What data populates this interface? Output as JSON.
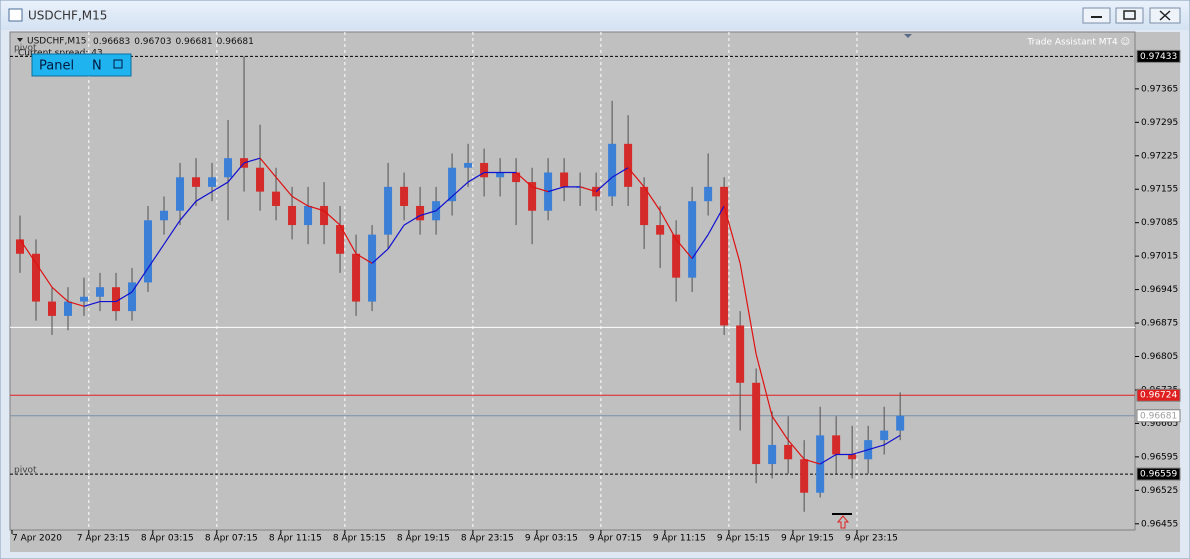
{
  "window": {
    "title": "USDCHF,M15"
  },
  "chart_data": {
    "type": "candlestick",
    "symbol": "USDCHF,M15",
    "header_prices": [
      0.96683,
      0.96703,
      0.96681,
      0.96681
    ],
    "spread_text": "Current spread: 43",
    "panel_button": "Panel",
    "panel_mode": "N",
    "assistant": "Trade Assistant MT4 ☺",
    "annotations": [
      "pivot",
      "pivot"
    ],
    "x": [
      0.5,
      1.5,
      2.5,
      3.5,
      4.5,
      5.5,
      6.5,
      7.5,
      8.5,
      9.5,
      10.5,
      11.5,
      12.5,
      13.5,
      14.5,
      15.5,
      16.5,
      17.5,
      18.5,
      19.5,
      20.5,
      21.5,
      22.5,
      23.5,
      24.5,
      25.5,
      26.5,
      27.5,
      28.5,
      29.5,
      30.5,
      31.5,
      32.5,
      33.5,
      34.5,
      35.5,
      36.5,
      37.5,
      38.5,
      39.5,
      40.5,
      41.5,
      42.5,
      43.5,
      44.5,
      45.5,
      46.5,
      47.5,
      48.5,
      49.5,
      50.5,
      51.5,
      52.5,
      53.5,
      54.5,
      55.5
    ],
    "open": [
      0.9705,
      0.9702,
      0.9692,
      0.9689,
      0.9692,
      0.9693,
      0.9695,
      0.969,
      0.9696,
      0.9709,
      0.9711,
      0.9718,
      0.9716,
      0.9718,
      0.9722,
      0.972,
      0.9715,
      0.9712,
      0.9708,
      0.9712,
      0.9708,
      0.9702,
      0.9692,
      0.9706,
      0.9716,
      0.9712,
      0.9709,
      0.9713,
      0.972,
      0.9721,
      0.9718,
      0.9719,
      0.9717,
      0.9711,
      0.9719,
      0.9716,
      0.9716,
      0.9714,
      0.9725,
      0.9716,
      0.9708,
      0.9706,
      0.9697,
      0.9713,
      0.9716,
      0.9687,
      0.9675,
      0.9658,
      0.9662,
      0.9659,
      0.9652,
      0.9664,
      0.966,
      0.9659,
      0.9663,
      0.9665
    ],
    "high": [
      0.971,
      0.9705,
      0.9695,
      0.9695,
      0.9697,
      0.9698,
      0.9698,
      0.9699,
      0.9712,
      0.9714,
      0.9721,
      0.9722,
      0.9721,
      0.973,
      0.97433,
      0.9729,
      0.972,
      0.9716,
      0.9716,
      0.9717,
      0.9712,
      0.9706,
      0.9708,
      0.9721,
      0.9719,
      0.9716,
      0.9716,
      0.9723,
      0.9725,
      0.9724,
      0.9722,
      0.9722,
      0.972,
      0.9722,
      0.9722,
      0.9719,
      0.9719,
      0.9734,
      0.9731,
      0.9718,
      0.9712,
      0.9709,
      0.9716,
      0.9723,
      0.9718,
      0.969,
      0.9678,
      0.9669,
      0.9668,
      0.9663,
      0.967,
      0.9668,
      0.9666,
      0.9666,
      0.967,
      0.9673
    ],
    "low": [
      0.9698,
      0.9688,
      0.9685,
      0.9686,
      0.9689,
      0.969,
      0.9688,
      0.9688,
      0.9694,
      0.9706,
      0.9708,
      0.9712,
      0.9713,
      0.9709,
      0.9715,
      0.9711,
      0.9709,
      0.9705,
      0.9704,
      0.9704,
      0.9698,
      0.9689,
      0.969,
      0.9703,
      0.9709,
      0.9706,
      0.9706,
      0.971,
      0.9716,
      0.9714,
      0.9714,
      0.9708,
      0.9704,
      0.9709,
      0.9713,
      0.9712,
      0.9711,
      0.9712,
      0.9712,
      0.9703,
      0.9699,
      0.9692,
      0.9694,
      0.971,
      0.9685,
      0.9665,
      0.9654,
      0.9655,
      0.9656,
      0.9648,
      0.9651,
      0.9656,
      0.9655,
      0.9656,
      0.966,
      0.9663
    ],
    "close": [
      0.9702,
      0.9692,
      0.9689,
      0.9692,
      0.9693,
      0.9695,
      0.969,
      0.9696,
      0.9709,
      0.9711,
      0.9718,
      0.9716,
      0.9718,
      0.9722,
      0.972,
      0.9715,
      0.9712,
      0.9708,
      0.9712,
      0.9708,
      0.9702,
      0.9692,
      0.9706,
      0.9716,
      0.9712,
      0.9709,
      0.9713,
      0.972,
      0.9721,
      0.9718,
      0.9719,
      0.9717,
      0.9711,
      0.9719,
      0.9716,
      0.9716,
      0.9714,
      0.9725,
      0.9716,
      0.9708,
      0.9706,
      0.9697,
      0.9713,
      0.9716,
      0.9687,
      0.9675,
      0.9658,
      0.9662,
      0.9659,
      0.9652,
      0.9664,
      0.966,
      0.9659,
      0.9663,
      0.9665,
      0.96681
    ],
    "up_color": "#3b7fd6",
    "down_color": "#d42a2a",
    "ma": {
      "up_color": "#1010d0",
      "down_color": "#e01010",
      "values": [
        0.9705,
        0.97,
        0.9695,
        0.9692,
        0.9691,
        0.9692,
        0.9692,
        0.9694,
        0.9699,
        0.9704,
        0.9709,
        0.9713,
        0.9715,
        0.9717,
        0.9721,
        0.9722,
        0.9718,
        0.9714,
        0.9712,
        0.9711,
        0.9708,
        0.9702,
        0.97,
        0.9703,
        0.9708,
        0.971,
        0.9711,
        0.9714,
        0.9717,
        0.9719,
        0.9719,
        0.9719,
        0.9716,
        0.9715,
        0.9716,
        0.9716,
        0.9715,
        0.9718,
        0.972,
        0.9716,
        0.9711,
        0.9705,
        0.9701,
        0.9706,
        0.9712,
        0.97,
        0.9681,
        0.9668,
        0.9663,
        0.9659,
        0.9658,
        0.966,
        0.966,
        0.9661,
        0.9662,
        0.9664
      ]
    },
    "levels": [
      {
        "price": 0.97433,
        "style": "dashed",
        "color": "#000000",
        "tag_color": "#000000",
        "tag_text": "#ffffff"
      },
      {
        "price": 0.96866,
        "style": "solid",
        "color": "#ffffff"
      },
      {
        "price": 0.96724,
        "style": "solid",
        "color": "#e02020",
        "tag_color": "#e02020",
        "tag_text": "#ffffff"
      },
      {
        "price": 0.96681,
        "style": "solid",
        "color": "#7890a8",
        "tag_color": "#ffffff",
        "tag_text": "#a0a0a0"
      },
      {
        "price": 0.96559,
        "style": "dashed",
        "color": "#000000",
        "tag_color": "#000000",
        "tag_text": "#ffffff"
      }
    ],
    "ylim": [
      0.96442,
      0.97484
    ],
    "yticks": [
      0.97365,
      0.97295,
      0.97225,
      0.97155,
      0.97085,
      0.97015,
      0.96945,
      0.96875,
      0.96805,
      0.96735,
      0.96665,
      0.96595,
      0.96525,
      0.96455
    ],
    "xlim": [
      0,
      70.3
    ],
    "xticks": [
      {
        "value": 0,
        "label": "7 Apr 2020"
      },
      {
        "value": 4.8,
        "label": "7 Apr 23:15"
      },
      {
        "value": 8.8,
        "label": "8 Apr 03:15"
      },
      {
        "value": 12.8,
        "label": "8 Apr 07:15"
      },
      {
        "value": 16.8,
        "label": "8 Apr 11:15"
      },
      {
        "value": 20.8,
        "label": "8 Apr 15:15"
      },
      {
        "value": 24.8,
        "label": "8 Apr 19:15"
      },
      {
        "value": 28.8,
        "label": "8 Apr 23:15"
      },
      {
        "value": 32.8,
        "label": "9 Apr 03:15"
      },
      {
        "value": 36.8,
        "label": "9 Apr 07:15"
      },
      {
        "value": 40.8,
        "label": "9 Apr 11:15"
      },
      {
        "value": 44.8,
        "label": "9 Apr 15:15"
      },
      {
        "value": 48.8,
        "label": "9 Apr 19:15"
      },
      {
        "value": 52.8,
        "label": "9 Apr 23:15"
      }
    ],
    "grid": true
  }
}
